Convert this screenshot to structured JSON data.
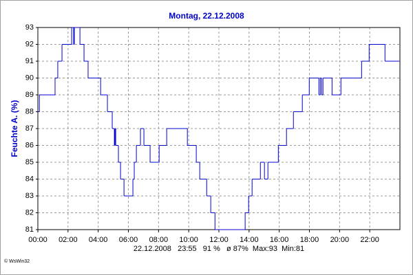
{
  "chart_data": {
    "type": "step",
    "title": "Montag, 22.12.2008",
    "y_label": "Feuchte A. (%)",
    "summary": "22.12.2008   23:55   91 %   ø 87%  Max:93  Min:81",
    "copyright": "© WsWin32",
    "color": "#0000cc",
    "grid": true,
    "xlim": [
      0,
      24
    ],
    "ylim": [
      81,
      93
    ],
    "yticks": [
      81,
      82,
      83,
      84,
      85,
      86,
      87,
      88,
      89,
      90,
      91,
      92,
      93
    ],
    "xticks": [
      {
        "value": 0,
        "label": "00:00"
      },
      {
        "value": 2,
        "label": "02:00"
      },
      {
        "value": 4,
        "label": "04:00"
      },
      {
        "value": 6,
        "label": "06:00"
      },
      {
        "value": 8,
        "label": "08:00"
      },
      {
        "value": 10,
        "label": "10:00"
      },
      {
        "value": 12,
        "label": "12:00"
      },
      {
        "value": 14,
        "label": "14:00"
      },
      {
        "value": 16,
        "label": "16:00"
      },
      {
        "value": 18,
        "label": "18:00"
      },
      {
        "value": 20,
        "label": "20:00"
      },
      {
        "value": 22,
        "label": "22:00"
      }
    ],
    "x": [
      0,
      0.1,
      1.14,
      1.32,
      1.6,
      2.24,
      2.37,
      2.42,
      2.79,
      3.06,
      3.33,
      4.16,
      4.61,
      4.93,
      5.07,
      5.11,
      5.16,
      5.34,
      5.48,
      5.71,
      6.3,
      6.39,
      6.53,
      6.8,
      7.03,
      7.44,
      8.04,
      8.54,
      9.91,
      10.5,
      10.73,
      11.19,
      11.46,
      11.74,
      13.74,
      13.97,
      14.2,
      14.75,
      15.02,
      15.25,
      15.94,
      16.48,
      16.94,
      17.53,
      17.99,
      18.63,
      18.72,
      18.81,
      18.9,
      19.5,
      20.09,
      21.46,
      21.96,
      23.01,
      23.92
    ],
    "values": [
      88,
      89,
      90,
      91,
      92,
      93,
      92,
      93,
      92,
      91,
      90,
      89,
      88,
      87,
      86,
      87,
      86,
      85,
      84,
      83,
      84,
      85,
      86,
      87,
      86,
      85,
      86,
      87,
      86,
      85,
      84,
      83,
      82,
      81,
      82,
      83,
      84,
      85,
      84,
      85,
      86,
      87,
      88,
      89,
      90,
      89,
      90,
      89,
      90,
      89,
      90,
      91,
      92,
      91,
      91
    ]
  }
}
